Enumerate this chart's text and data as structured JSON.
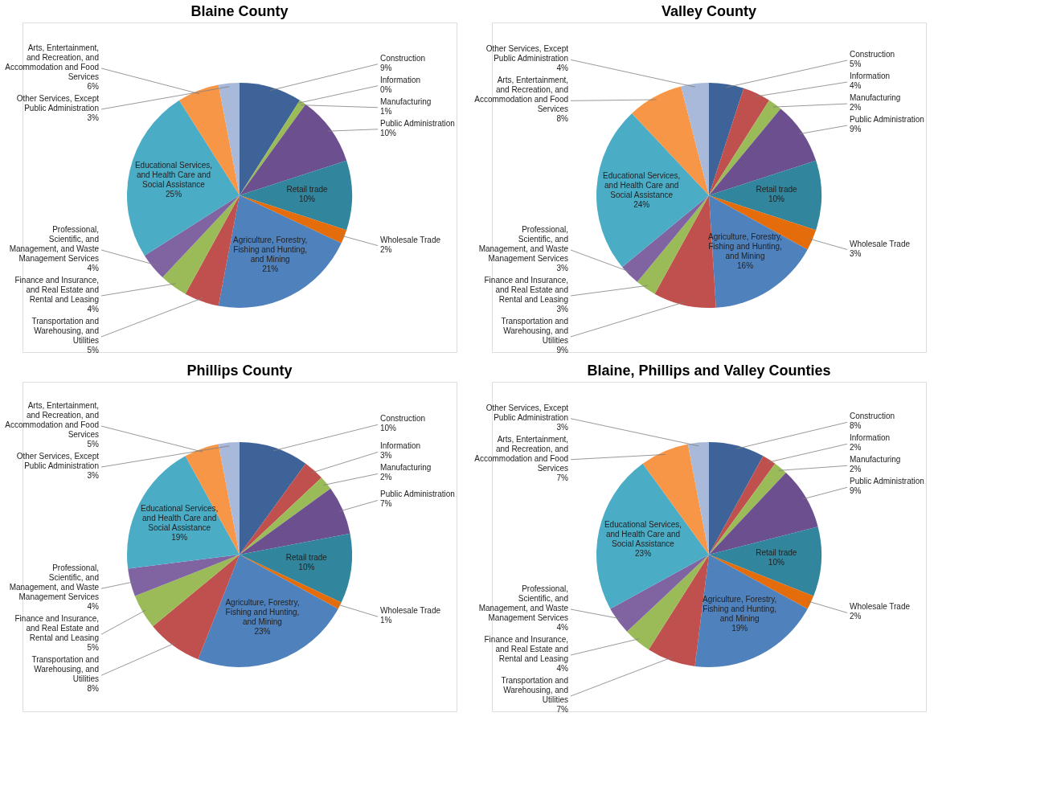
{
  "chart_data": [
    {
      "type": "pie",
      "title": "Blaine County",
      "categories": [
        "Construction",
        "Information",
        "Manufacturing",
        "Public Administration",
        "Retail trade",
        "Wholesale Trade",
        "Agriculture, Forestry, Fishing and Hunting, and Mining",
        "Transportation and Warehousing, and Utilities",
        "Finance and Insurance, and Real Estate and Rental and Leasing",
        "Professional, Scientific, and Management, and Waste Management Services",
        "Educational Services, and Health Care and Social Assistance",
        "Arts, Entertainment, and Recreation, and Accommodation and Food Services",
        "Other Services, Except Public Administration"
      ],
      "values": [
        9,
        0,
        1,
        10,
        10,
        2,
        21,
        5,
        4,
        4,
        25,
        6,
        3
      ],
      "value_labels": [
        "9%",
        "0%",
        "1%",
        "10%",
        "10%",
        "2%",
        "21%",
        "5%",
        "4%",
        "4%",
        "25%",
        "6%",
        "3%"
      ],
      "colors": [
        "#3d6399",
        "#c0504d",
        "#9bbb59",
        "#6b4f8f",
        "#31859c",
        "#e46c0a",
        "#4f81bd",
        "#c0504d",
        "#9bbb59",
        "#8064a2",
        "#4bacc6",
        "#f79646",
        "#a9b9d9"
      ]
    },
    {
      "type": "pie",
      "title": "Valley County",
      "categories": [
        "Construction",
        "Information",
        "Manufacturing",
        "Public Administration",
        "Retail trade",
        "Wholesale Trade",
        "Agriculture, Forestry, Fishing and Hunting, and Mining",
        "Transportation and Warehousing, and Utilities",
        "Finance and Insurance, and Real Estate and Rental and Leasing",
        "Professional, Scientific, and Management, and Waste Management Services",
        "Educational Services, and Health Care and Social Assistance",
        "Arts, Entertainment, and Recreation, and Accommodation and Food Services",
        "Other Services, Except Public Administration"
      ],
      "values": [
        5,
        4,
        2,
        9,
        10,
        3,
        16,
        9,
        3,
        3,
        24,
        8,
        4
      ],
      "value_labels": [
        "5%",
        "4%",
        "2%",
        "9%",
        "10%",
        "3%",
        "16%",
        "9%",
        "3%",
        "3%",
        "24%",
        "8%",
        "4%"
      ],
      "colors": [
        "#3d6399",
        "#c0504d",
        "#9bbb59",
        "#6b4f8f",
        "#31859c",
        "#e46c0a",
        "#4f81bd",
        "#c0504d",
        "#9bbb59",
        "#8064a2",
        "#4bacc6",
        "#f79646",
        "#a9b9d9"
      ]
    },
    {
      "type": "pie",
      "title": "Phillips County",
      "categories": [
        "Construction",
        "Information",
        "Manufacturing",
        "Public Administration",
        "Retail trade",
        "Wholesale Trade",
        "Agriculture, Forestry, Fishing and Hunting, and Mining",
        "Transportation and Warehousing, and Utilities",
        "Finance and Insurance, and Real Estate and Rental and Leasing",
        "Professional, Scientific, and Management, and Waste Management Services",
        "Educational Services, and Health Care and Social Assistance",
        "Arts, Entertainment, and Recreation, and Accommodation and Food Services",
        "Other Services, Except Public Administration"
      ],
      "values": [
        10,
        3,
        2,
        7,
        10,
        1,
        23,
        8,
        5,
        4,
        19,
        5,
        3
      ],
      "value_labels": [
        "10%",
        "3%",
        "2%",
        "7%",
        "10%",
        "1%",
        "23%",
        "8%",
        "5%",
        "4%",
        "19%",
        "5%",
        "3%"
      ],
      "colors": [
        "#3d6399",
        "#c0504d",
        "#9bbb59",
        "#6b4f8f",
        "#31859c",
        "#e46c0a",
        "#4f81bd",
        "#c0504d",
        "#9bbb59",
        "#8064a2",
        "#4bacc6",
        "#f79646",
        "#a9b9d9"
      ]
    },
    {
      "type": "pie",
      "title": "Blaine, Phillips and Valley Counties",
      "categories": [
        "Construction",
        "Information",
        "Manufacturing",
        "Public Administration",
        "Retail trade",
        "Wholesale Trade",
        "Agriculture, Forestry, Fishing and Hunting, and Mining",
        "Transportation and Warehousing, and Utilities",
        "Finance and Insurance, and Real Estate and Rental and Leasing",
        "Professional, Scientific, and Management, and Waste Management Services",
        "Educational Services, and Health Care and Social Assistance",
        "Arts, Entertainment, and Recreation, and Accommodation and Food Services",
        "Other Services, Except Public Administration"
      ],
      "values": [
        8,
        2,
        2,
        9,
        10,
        2,
        19,
        7,
        4,
        4,
        23,
        7,
        3
      ],
      "value_labels": [
        "8%",
        "2%",
        "2%",
        "9%",
        "10%",
        "2%",
        "19%",
        "7%",
        "4%",
        "4%",
        "23%",
        "7%",
        "3%"
      ],
      "colors": [
        "#3d6399",
        "#c0504d",
        "#9bbb59",
        "#6b4f8f",
        "#31859c",
        "#e46c0a",
        "#4f81bd",
        "#c0504d",
        "#9bbb59",
        "#8064a2",
        "#4bacc6",
        "#f79646",
        "#a9b9d9"
      ]
    }
  ]
}
